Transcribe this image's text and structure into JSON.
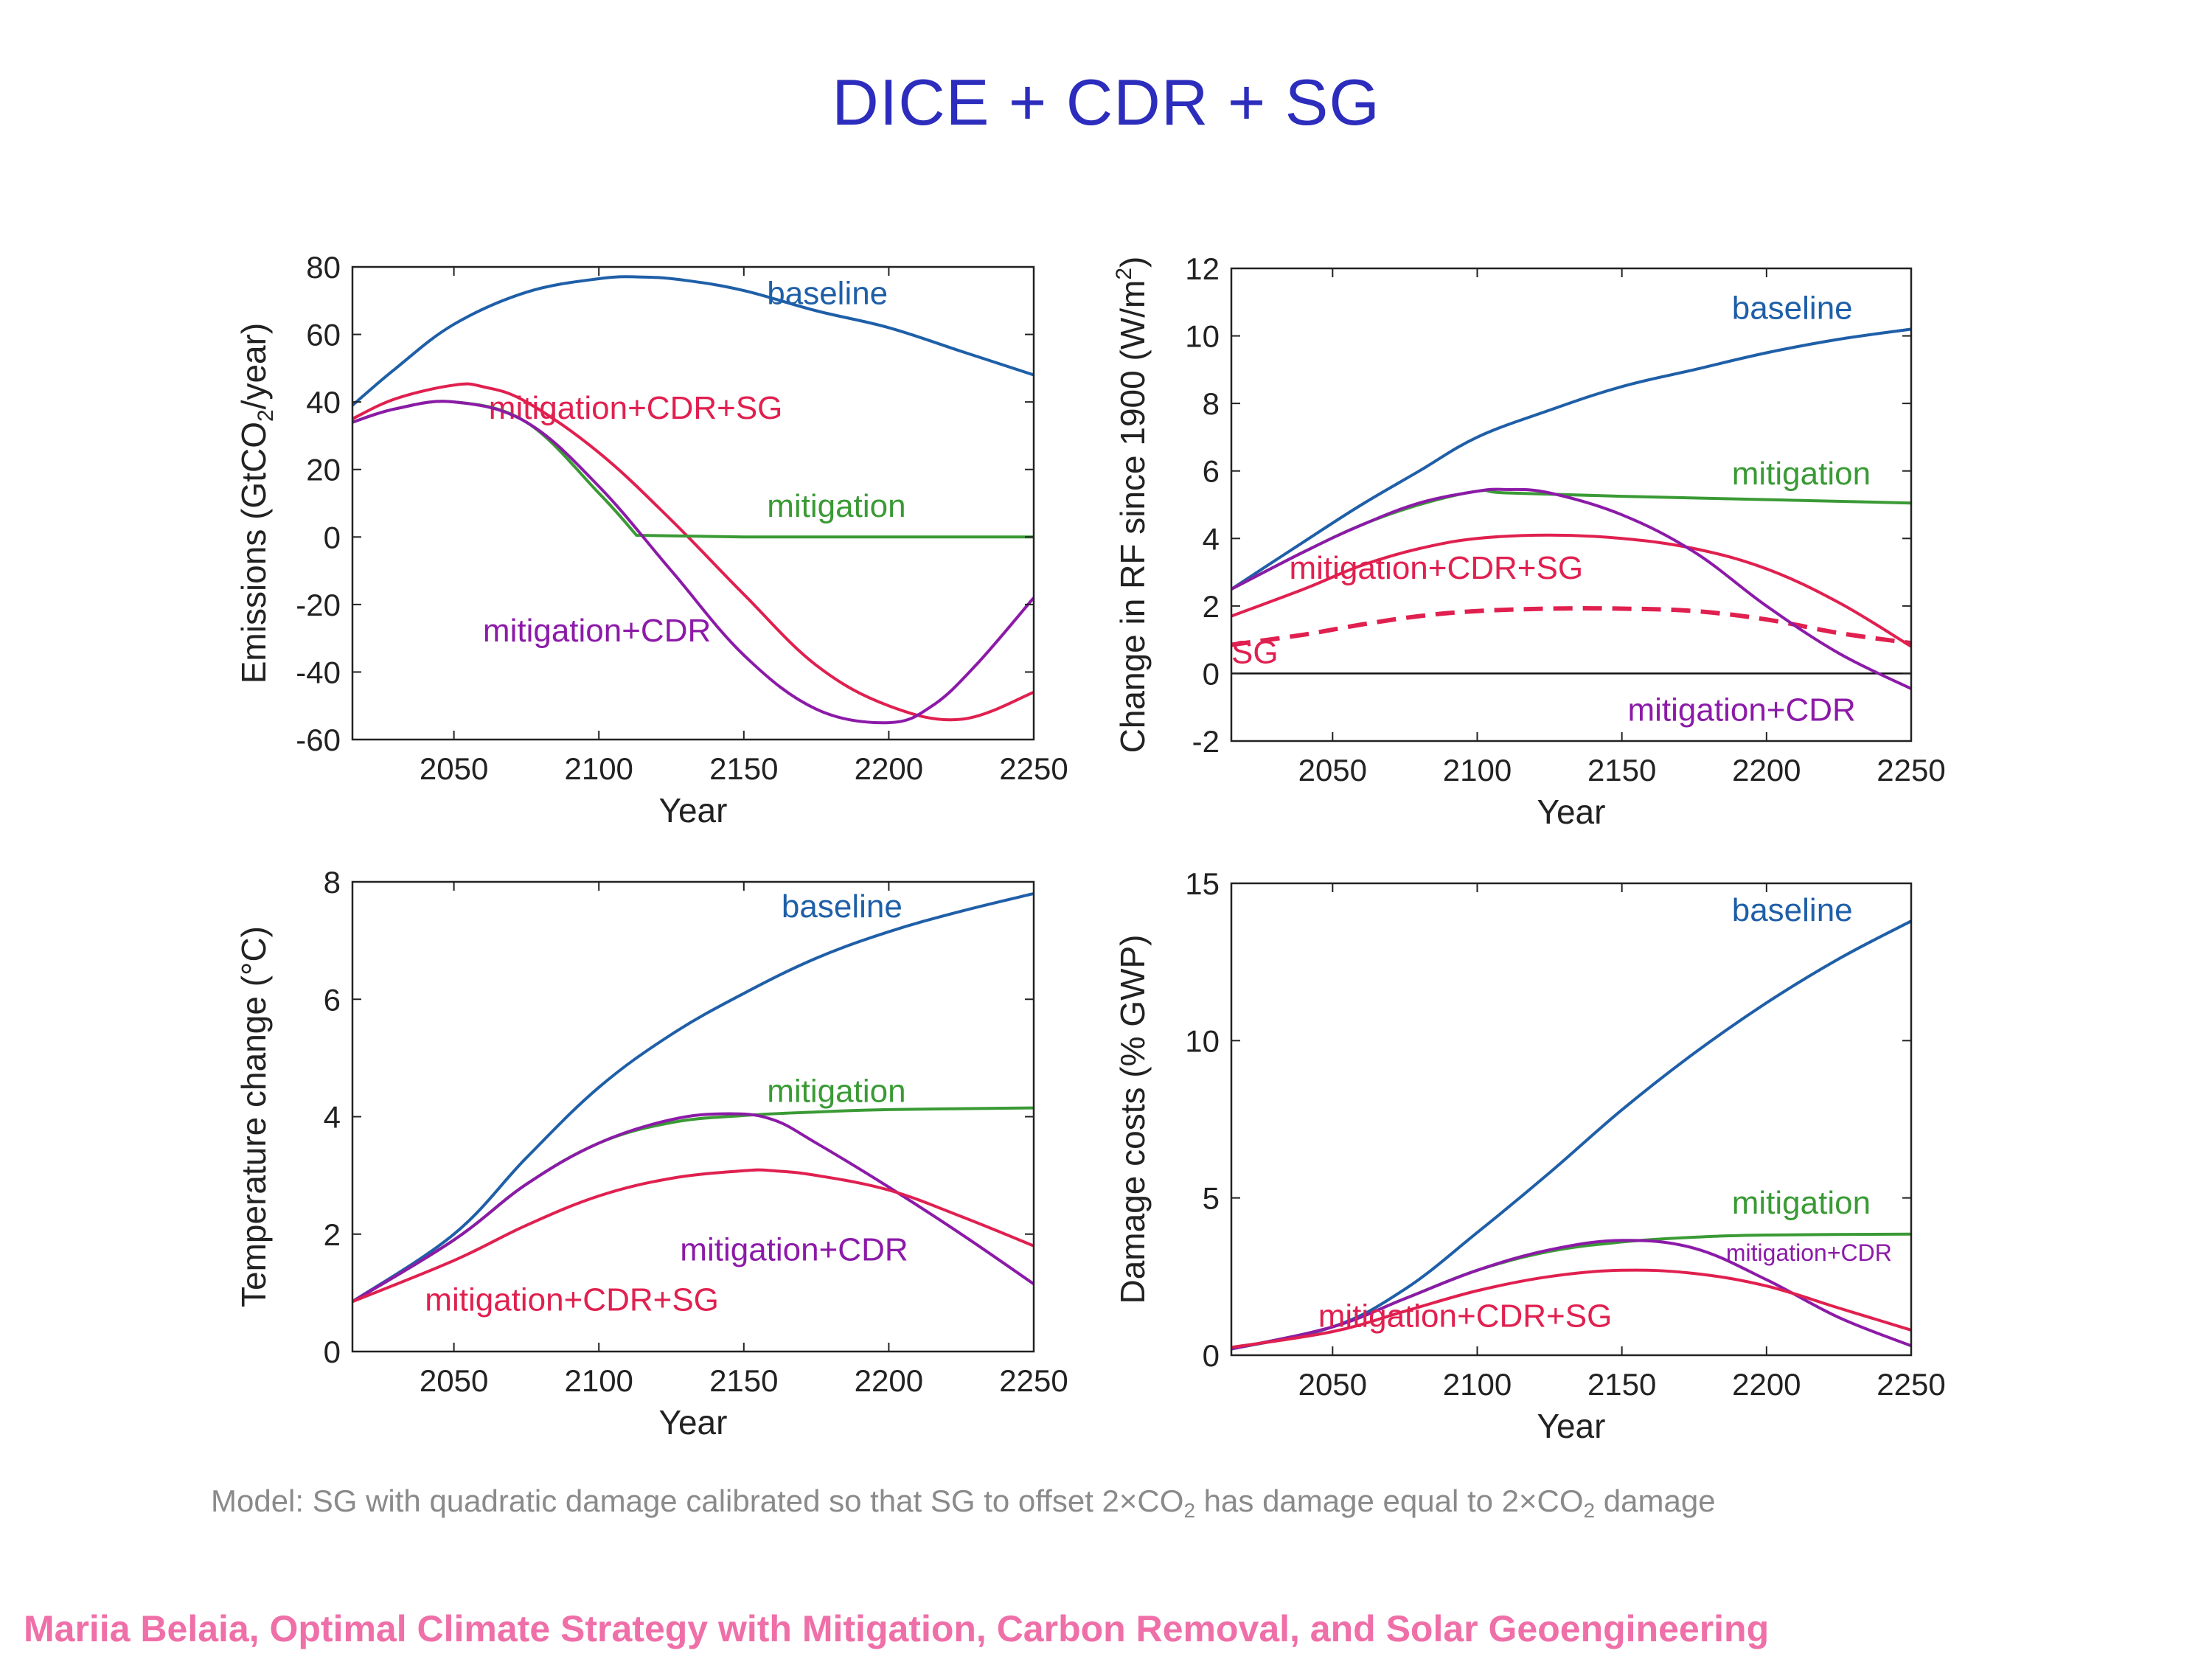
{
  "title": "DICE + CDR + SG",
  "footnote": {
    "part1": "Model: SG with quadratic damage calibrated so that SG to offset 2×CO",
    "sub1": "2",
    "part2": " has damage equal to 2×CO",
    "sub2": "2",
    "part3": " damage"
  },
  "credit": "Mariia Belaia, Optimal Climate Strategy with Mitigation, Carbon Removal, and Solar Geoengineering",
  "colors": {
    "baseline": "#1f5fa8",
    "mitigation": "#3a9a35",
    "mitigation_cdr": "#8c1aa8",
    "mitigation_cdr_sg": "#e0204f",
    "sg": "#e0204f",
    "axis": "#222222",
    "title": "#2c2cbd"
  },
  "chart_data": [
    {
      "id": "emissions",
      "type": "line",
      "xlabel": "Year",
      "ylabel": "Emissions (GtCO",
      "ylabel_sub": "2",
      "ylabel_suffix": "/year)",
      "xlim": [
        2015,
        2250
      ],
      "ylim": [
        -60,
        80
      ],
      "xticks": [
        "2050",
        "2100",
        "2150",
        "2200",
        "2250"
      ],
      "yticks": [
        "-60",
        "-40",
        "-20",
        "0",
        "20",
        "40",
        "60",
        "80"
      ],
      "zero_line": false,
      "series": [
        {
          "name": "baseline",
          "color_key": "baseline",
          "label_x": 2158,
          "label_y": 69,
          "x": [
            2015,
            2030,
            2050,
            2075,
            2100,
            2115,
            2130,
            2150,
            2175,
            2200,
            2225,
            2250
          ],
          "y": [
            39,
            50,
            63,
            72.5,
            76.5,
            77,
            76,
            73,
            67,
            62,
            55,
            48
          ]
        },
        {
          "name": "mitigation+CDR+SG",
          "color_key": "mitigation_cdr_sg",
          "label_x": 2062,
          "label_y": 35,
          "x": [
            2015,
            2030,
            2050,
            2060,
            2075,
            2100,
            2125,
            2150,
            2175,
            2200,
            2225,
            2250
          ],
          "y": [
            35,
            41,
            45,
            44.5,
            40,
            25,
            5,
            -17,
            -38,
            -50,
            -54,
            -46
          ]
        },
        {
          "name": "mitigation",
          "color_key": "mitigation",
          "label_x": 2158,
          "label_y": 6,
          "x": [
            2015,
            2030,
            2050,
            2075,
            2100,
            2113,
            2150,
            2200,
            2250
          ],
          "y": [
            34,
            38,
            40,
            34,
            13,
            0.5,
            0,
            0,
            0
          ],
          "y_fix_after": 2113
        },
        {
          "name": "mitigation+CDR",
          "color_key": "mitigation_cdr",
          "label_x": 2060,
          "label_y": -31,
          "x": [
            2015,
            2030,
            2050,
            2075,
            2100,
            2125,
            2150,
            2175,
            2200,
            2215,
            2230,
            2250
          ],
          "y": [
            34,
            38,
            40,
            34,
            15,
            -10,
            -35,
            -51,
            -55,
            -50,
            -38,
            -18
          ]
        }
      ]
    },
    {
      "id": "forcing",
      "type": "line",
      "xlabel": "Year",
      "ylabel": "Change in RF since 1900 (W/m",
      "ylabel_sup": "2",
      "ylabel_suffix": ")",
      "xlim": [
        2015,
        2250
      ],
      "ylim": [
        -2,
        12
      ],
      "xticks": [
        "2050",
        "2100",
        "2150",
        "2200",
        "2250"
      ],
      "yticks": [
        "-2",
        "0",
        "2",
        "4",
        "6",
        "8",
        "10",
        "12"
      ],
      "zero_line": true,
      "series": [
        {
          "name": "baseline",
          "color_key": "baseline",
          "label_x": 2188,
          "label_y": 10.5,
          "x": [
            2015,
            2040,
            2060,
            2080,
            2100,
            2125,
            2150,
            2175,
            2200,
            2225,
            2250
          ],
          "y": [
            2.5,
            3.9,
            5.0,
            6.0,
            7.0,
            7.8,
            8.5,
            9.0,
            9.5,
            9.9,
            10.2
          ]
        },
        {
          "name": "mitigation",
          "color_key": "mitigation",
          "label_x": 2188,
          "label_y": 5.6,
          "x": [
            2015,
            2040,
            2060,
            2080,
            2100,
            2110,
            2150,
            2200,
            2250
          ],
          "y": [
            2.5,
            3.6,
            4.4,
            5.0,
            5.4,
            5.35,
            5.25,
            5.15,
            5.05
          ]
        },
        {
          "name": "mitigation+CDR+SG",
          "color_key": "mitigation_cdr_sg",
          "label_x": 2035,
          "label_y": 2.8,
          "x": [
            2015,
            2040,
            2060,
            2080,
            2100,
            2125,
            2150,
            2175,
            2200,
            2225,
            2250
          ],
          "y": [
            1.7,
            2.5,
            3.2,
            3.7,
            4.0,
            4.1,
            4.0,
            3.7,
            3.1,
            2.1,
            0.8
          ]
        },
        {
          "name": "SG",
          "color_key": "sg",
          "dashed": true,
          "label_x": 2015,
          "label_y": 0.3,
          "x": [
            2015,
            2040,
            2060,
            2080,
            2100,
            2125,
            2150,
            2175,
            2200,
            2225,
            2250
          ],
          "y": [
            0.85,
            1.15,
            1.45,
            1.7,
            1.85,
            1.92,
            1.92,
            1.85,
            1.6,
            1.2,
            0.9
          ]
        },
        {
          "name": "mitigation+CDR",
          "color_key": "mitigation_cdr",
          "label_x": 2152,
          "label_y": -1.4,
          "x": [
            2015,
            2040,
            2060,
            2080,
            2100,
            2110,
            2125,
            2150,
            2175,
            2200,
            2225,
            2250
          ],
          "y": [
            2.5,
            3.6,
            4.4,
            5.05,
            5.4,
            5.45,
            5.35,
            4.7,
            3.6,
            2.0,
            0.6,
            -0.45
          ]
        }
      ]
    },
    {
      "id": "temperature",
      "type": "line",
      "xlabel": "Year",
      "ylabel": "Temperature change (°C)",
      "xlim": [
        2015,
        2250
      ],
      "ylim": [
        0,
        8
      ],
      "xticks": [
        "2050",
        "2100",
        "2150",
        "2200",
        "2250"
      ],
      "yticks": [
        "0",
        "2",
        "4",
        "6",
        "8"
      ],
      "zero_line": false,
      "series": [
        {
          "name": "baseline",
          "color_key": "baseline",
          "label_x": 2163,
          "label_y": 7.4,
          "x": [
            2015,
            2050,
            2075,
            2100,
            2125,
            2150,
            2175,
            2200,
            2225,
            2250
          ],
          "y": [
            0.85,
            2.0,
            3.3,
            4.5,
            5.4,
            6.1,
            6.7,
            7.15,
            7.5,
            7.8
          ]
        },
        {
          "name": "mitigation",
          "color_key": "mitigation",
          "label_x": 2158,
          "label_y": 4.25,
          "x": [
            2015,
            2050,
            2075,
            2100,
            2125,
            2150,
            2175,
            2200,
            2250
          ],
          "y": [
            0.85,
            1.9,
            2.85,
            3.55,
            3.9,
            4.02,
            4.08,
            4.12,
            4.15
          ]
        },
        {
          "name": "mitigation+CDR",
          "color_key": "mitigation_cdr",
          "label_x": 2128,
          "label_y": 1.55,
          "x": [
            2015,
            2050,
            2075,
            2100,
            2125,
            2145,
            2160,
            2175,
            2200,
            2225,
            2250
          ],
          "y": [
            0.85,
            1.9,
            2.85,
            3.55,
            3.95,
            4.05,
            3.95,
            3.55,
            2.8,
            2.0,
            1.15
          ]
        },
        {
          "name": "mitigation+CDR+SG",
          "color_key": "mitigation_cdr_sg",
          "label_x": 2040,
          "label_y": 0.7,
          "x": [
            2015,
            2050,
            2075,
            2100,
            2125,
            2150,
            2160,
            2175,
            2200,
            2225,
            2250
          ],
          "y": [
            0.85,
            1.55,
            2.15,
            2.65,
            2.95,
            3.08,
            3.08,
            3.0,
            2.75,
            2.3,
            1.8
          ]
        }
      ]
    },
    {
      "id": "damage",
      "type": "line",
      "xlabel": "Year",
      "ylabel": "Damage costs (% GWP)",
      "xlim": [
        2015,
        2250
      ],
      "ylim": [
        0,
        15
      ],
      "xticks": [
        "2050",
        "2100",
        "2150",
        "2200",
        "2250"
      ],
      "yticks": [
        "0",
        "5",
        "10",
        "15"
      ],
      "zero_line": false,
      "series": [
        {
          "name": "baseline",
          "color_key": "baseline",
          "label_x": 2188,
          "label_y": 13.8,
          "x": [
            2015,
            2050,
            2075,
            2100,
            2125,
            2150,
            2175,
            2200,
            2225,
            2250
          ],
          "y": [
            0.2,
            0.9,
            2.1,
            3.9,
            5.8,
            7.8,
            9.6,
            11.2,
            12.6,
            13.8
          ]
        },
        {
          "name": "mitigation",
          "color_key": "mitigation",
          "label_x": 2188,
          "label_y": 4.5,
          "x": [
            2015,
            2050,
            2075,
            2100,
            2125,
            2150,
            2175,
            2200,
            2250
          ],
          "y": [
            0.2,
            0.9,
            1.8,
            2.7,
            3.3,
            3.6,
            3.75,
            3.82,
            3.85
          ]
        },
        {
          "name": "mitigation+CDR",
          "color_key": "mitigation_cdr",
          "label_x": 2186,
          "label_y": 3.0,
          "small": true,
          "x": [
            2015,
            2050,
            2075,
            2100,
            2125,
            2150,
            2175,
            2200,
            2225,
            2250
          ],
          "y": [
            0.2,
            0.9,
            1.8,
            2.7,
            3.35,
            3.65,
            3.4,
            2.4,
            1.2,
            0.3
          ]
        },
        {
          "name": "mitigation+CDR+SG",
          "color_key": "mitigation_cdr_sg",
          "label_x": 2045,
          "label_y": 0.9,
          "x": [
            2015,
            2050,
            2075,
            2100,
            2125,
            2150,
            2175,
            2200,
            2225,
            2250
          ],
          "y": [
            0.25,
            0.75,
            1.4,
            2.05,
            2.5,
            2.7,
            2.6,
            2.2,
            1.5,
            0.8
          ]
        }
      ]
    }
  ]
}
